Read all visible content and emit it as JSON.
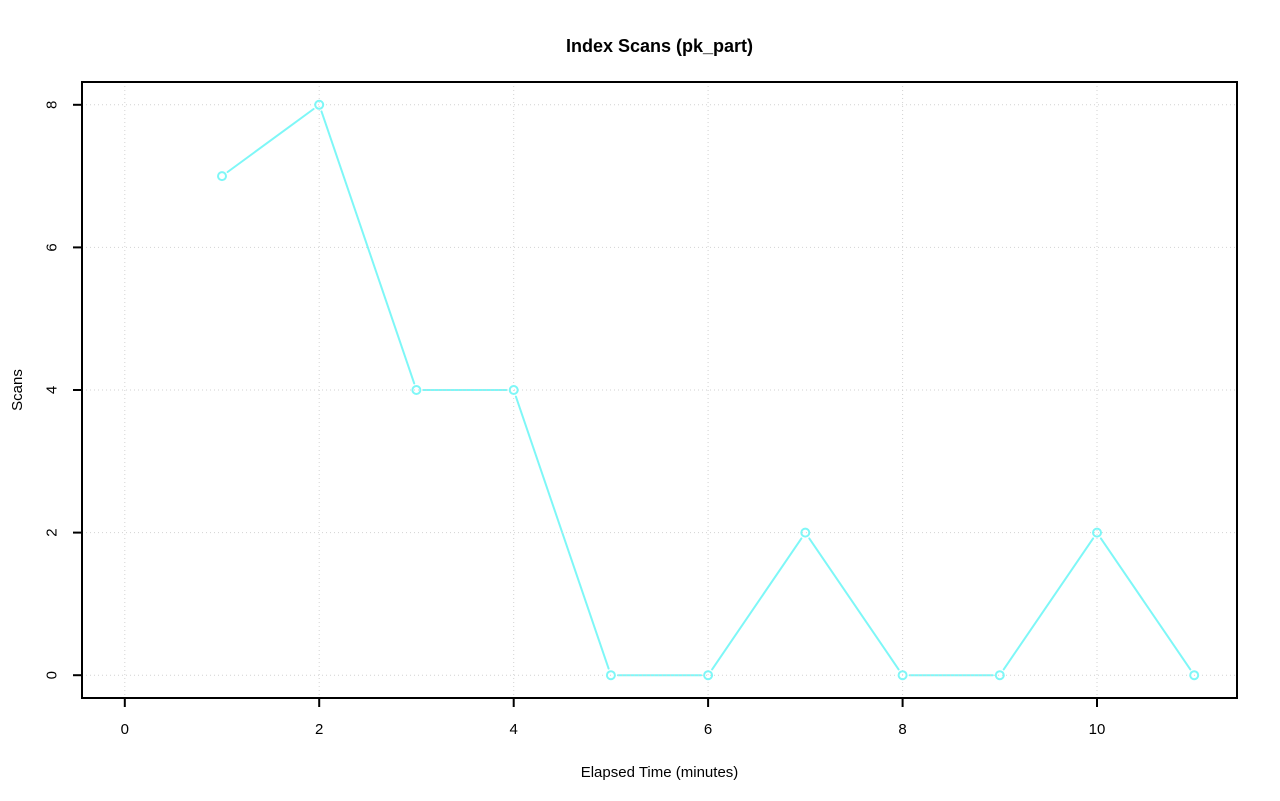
{
  "page": {
    "background": "#ffffff"
  },
  "chart_data": {
    "type": "line",
    "title": "Index Scans (pk_part)",
    "xlabel": "Elapsed Time (minutes)",
    "ylabel": "Scans",
    "x": [
      1,
      2,
      3,
      4,
      5,
      6,
      7,
      8,
      9,
      10,
      11
    ],
    "y": [
      7,
      8,
      4,
      4,
      0,
      0,
      2,
      0,
      0,
      2,
      0
    ],
    "xticks": [
      0,
      2,
      4,
      6,
      8,
      10
    ],
    "yticks": [
      0,
      2,
      4,
      6,
      8
    ],
    "xtick_labels": [
      "0",
      "2",
      "4",
      "6",
      "8",
      "10"
    ],
    "ytick_labels": [
      "0",
      "2",
      "4",
      "6",
      "8"
    ],
    "xlim": [
      -0.44,
      11.44
    ],
    "ylim": [
      -0.32,
      8.32
    ],
    "grid": true,
    "grid_style": "dotted",
    "legend": "none",
    "marker": "open-circle",
    "line_marker_gap": true,
    "colors": {
      "series": "#7ef7f7",
      "grid": "#d2d2d2",
      "axis": "#000000",
      "text": "#000000",
      "background": "#ffffff"
    }
  }
}
